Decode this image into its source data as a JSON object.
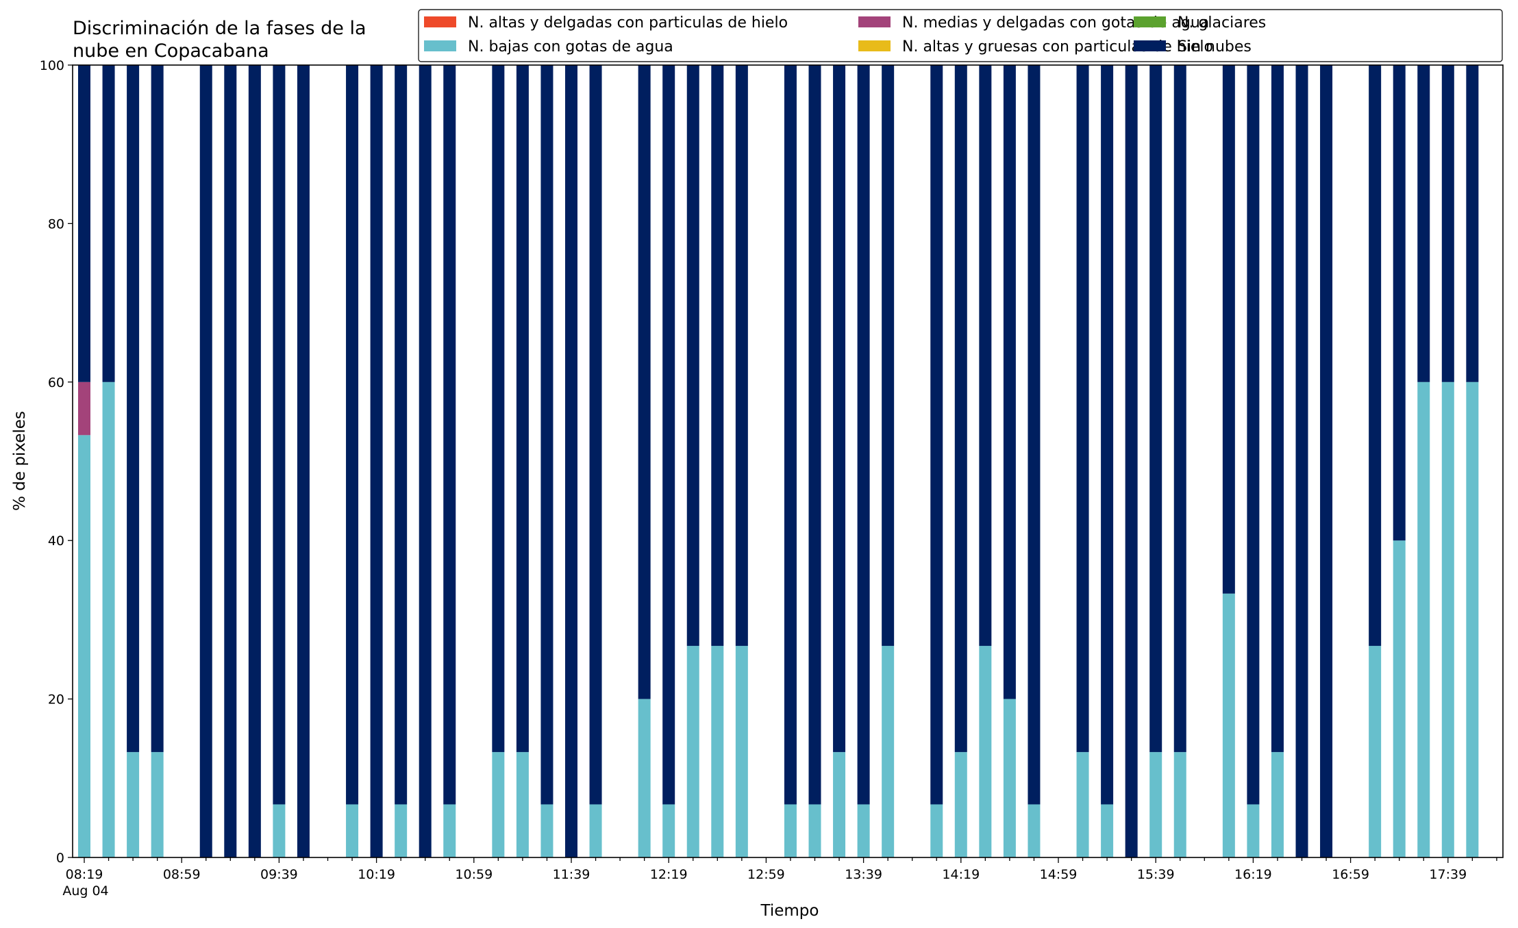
{
  "chart_data": {
    "type": "bar",
    "stacked": true,
    "title_lines": [
      "Discriminación de la fases de la",
      "nube en Copacabana"
    ],
    "xlabel": "Tiempo",
    "ylabel": "% de pixeles",
    "ylim": [
      0,
      100
    ],
    "yticks": [
      "0",
      "20",
      "40",
      "60",
      "80",
      "100"
    ],
    "xtick_labels": [
      "08:19",
      "08:59",
      "09:39",
      "10:19",
      "10:59",
      "11:39",
      "12:19",
      "12:59",
      "13:39",
      "14:19",
      "14:59",
      "15:39",
      "16:19",
      "16:59",
      "17:39"
    ],
    "x_date_label": "Aug 04",
    "x_start": "08:19",
    "x_step_minutes": 10,
    "legend_position": "top-right",
    "legend": [
      {
        "name": "N. altas y delgadas con particulas de hielo",
        "color": "#ee4a2a"
      },
      {
        "name": "N. bajas con gotas de agua",
        "color": "#67bfcc"
      },
      {
        "name": "N. medias y delgadas con gotas de agua",
        "color": "#a3437a"
      },
      {
        "name": "N. altas y gruesas con particulas de hielo",
        "color": "#e8bb1a"
      },
      {
        "name": "N. glaciares",
        "color": "#5ba22e"
      },
      {
        "name": "Sin nubes",
        "color": "#001f5f"
      }
    ],
    "bars": [
      {
        "time": "08:19",
        "bajas": 53.3,
        "medias": 6.7,
        "sin_nubes": 40.0
      },
      {
        "time": "08:29",
        "bajas": 60.0,
        "medias": 0,
        "sin_nubes": 40.0
      },
      {
        "time": "08:39",
        "bajas": 13.3,
        "medias": 0,
        "sin_nubes": 86.7
      },
      {
        "time": "08:49",
        "bajas": 13.3,
        "medias": 0,
        "sin_nubes": 86.7
      },
      {
        "time": "09:09",
        "bajas": 0,
        "medias": 0,
        "sin_nubes": 100
      },
      {
        "time": "09:19",
        "bajas": 0,
        "medias": 0,
        "sin_nubes": 100
      },
      {
        "time": "09:29",
        "bajas": 0,
        "medias": 0,
        "sin_nubes": 100
      },
      {
        "time": "09:39",
        "bajas": 6.7,
        "medias": 0,
        "sin_nubes": 93.3
      },
      {
        "time": "09:49",
        "bajas": 0,
        "medias": 0,
        "sin_nubes": 100
      },
      {
        "time": "10:09",
        "bajas": 6.7,
        "medias": 0,
        "sin_nubes": 93.3
      },
      {
        "time": "10:19",
        "bajas": 0,
        "medias": 0,
        "sin_nubes": 100
      },
      {
        "time": "10:29",
        "bajas": 6.7,
        "medias": 0,
        "sin_nubes": 93.3
      },
      {
        "time": "10:39",
        "bajas": 0,
        "medias": 0,
        "sin_nubes": 100
      },
      {
        "time": "10:49",
        "bajas": 6.7,
        "medias": 0,
        "sin_nubes": 93.3
      },
      {
        "time": "11:09",
        "bajas": 13.3,
        "medias": 0,
        "sin_nubes": 86.7
      },
      {
        "time": "11:19",
        "bajas": 13.3,
        "medias": 0,
        "sin_nubes": 86.7
      },
      {
        "time": "11:29",
        "bajas": 6.7,
        "medias": 0,
        "sin_nubes": 93.3
      },
      {
        "time": "11:39",
        "bajas": 0,
        "medias": 0,
        "sin_nubes": 100
      },
      {
        "time": "11:49",
        "bajas": 6.7,
        "medias": 0,
        "sin_nubes": 93.3
      },
      {
        "time": "12:09",
        "bajas": 20.0,
        "medias": 0,
        "sin_nubes": 80.0
      },
      {
        "time": "12:19",
        "bajas": 6.7,
        "medias": 0,
        "sin_nubes": 93.3
      },
      {
        "time": "12:29",
        "bajas": 26.7,
        "medias": 0,
        "sin_nubes": 73.3
      },
      {
        "time": "12:39",
        "bajas": 26.7,
        "medias": 0,
        "sin_nubes": 73.3
      },
      {
        "time": "12:49",
        "bajas": 26.7,
        "medias": 0,
        "sin_nubes": 73.3
      },
      {
        "time": "13:09",
        "bajas": 6.7,
        "medias": 0,
        "sin_nubes": 93.3
      },
      {
        "time": "13:19",
        "bajas": 6.7,
        "medias": 0,
        "sin_nubes": 93.3
      },
      {
        "time": "13:29",
        "bajas": 13.3,
        "medias": 0,
        "sin_nubes": 86.7
      },
      {
        "time": "13:39",
        "bajas": 6.7,
        "medias": 0,
        "sin_nubes": 93.3
      },
      {
        "time": "13:49",
        "bajas": 26.7,
        "medias": 0,
        "sin_nubes": 73.3
      },
      {
        "time": "14:09",
        "bajas": 6.7,
        "medias": 0,
        "sin_nubes": 93.3
      },
      {
        "time": "14:19",
        "bajas": 13.3,
        "medias": 0,
        "sin_nubes": 86.7
      },
      {
        "time": "14:29",
        "bajas": 26.7,
        "medias": 0,
        "sin_nubes": 73.3
      },
      {
        "time": "14:39",
        "bajas": 20.0,
        "medias": 0,
        "sin_nubes": 80.0
      },
      {
        "time": "14:49",
        "bajas": 6.7,
        "medias": 0,
        "sin_nubes": 93.3
      },
      {
        "time": "15:09",
        "bajas": 13.3,
        "medias": 0,
        "sin_nubes": 86.7
      },
      {
        "time": "15:19",
        "bajas": 6.7,
        "medias": 0,
        "sin_nubes": 93.3
      },
      {
        "time": "15:29",
        "bajas": 0,
        "medias": 0,
        "sin_nubes": 100
      },
      {
        "time": "15:39",
        "bajas": 13.3,
        "medias": 0,
        "sin_nubes": 86.7
      },
      {
        "time": "15:49",
        "bajas": 13.3,
        "medias": 0,
        "sin_nubes": 86.7
      },
      {
        "time": "16:09",
        "bajas": 33.3,
        "medias": 0,
        "sin_nubes": 66.7
      },
      {
        "time": "16:19",
        "bajas": 6.7,
        "medias": 0,
        "sin_nubes": 93.3
      },
      {
        "time": "16:29",
        "bajas": 13.3,
        "medias": 0,
        "sin_nubes": 86.7
      },
      {
        "time": "16:39",
        "bajas": 0,
        "medias": 0,
        "sin_nubes": 100
      },
      {
        "time": "16:49",
        "bajas": 0,
        "medias": 0,
        "sin_nubes": 100
      },
      {
        "time": "17:09",
        "bajas": 26.7,
        "medias": 0,
        "sin_nubes": 73.3
      },
      {
        "time": "17:19",
        "bajas": 40.0,
        "medias": 0,
        "sin_nubes": 60.0
      },
      {
        "time": "17:29",
        "bajas": 60.0,
        "medias": 0,
        "sin_nubes": 40.0
      },
      {
        "time": "17:39",
        "bajas": 60.0,
        "medias": 0,
        "sin_nubes": 40.0
      },
      {
        "time": "17:49",
        "bajas": 60.0,
        "medias": 0,
        "sin_nubes": 40.0
      }
    ]
  }
}
